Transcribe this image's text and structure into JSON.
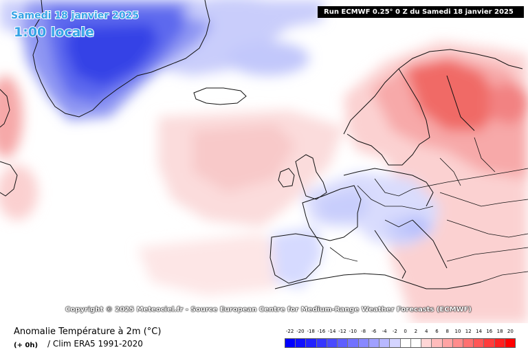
{
  "map": {
    "date_title": "Samedi 18 janvier 2025",
    "time_title": "1:00 locale",
    "run_info": "Run ECMWF 0.25° 0 Z du Samedi 18 janvier 2025",
    "copyright": "Copyright © 2025 Meteociel.fr - Source European Centre for Medium-Range Weather Forecasts (ECMWF)",
    "colors": {
      "ocean_neutral": "#ffffff",
      "greenland_cold": "#1f2fe0",
      "scandinavia_warm": "#f06a66",
      "border_lines": "#000000"
    }
  },
  "footer": {
    "field_title": "Anomalie Température à 2m (°C)",
    "lead_time": "(+ 0h)",
    "clim": "/ Clim ERA5 1991-2020"
  },
  "legend": {
    "labels": [
      "-22",
      "-20",
      "-18",
      "-16",
      "-14",
      "-12",
      "-10",
      "-8",
      "-6",
      "-4",
      "-2",
      "0",
      "2",
      "4",
      "6",
      "8",
      "10",
      "12",
      "14",
      "16",
      "18",
      "20"
    ],
    "colors": [
      "#0000ff",
      "#1010ff",
      "#2222ff",
      "#3636ff",
      "#4a4aff",
      "#5e5eff",
      "#7272ff",
      "#8888ff",
      "#a0a0ff",
      "#b8b8ff",
      "#d4d4ff",
      "#ffffff",
      "#ffffff",
      "#ffd6d6",
      "#ffbcbc",
      "#ffa4a4",
      "#ff8c8c",
      "#ff7070",
      "#ff5656",
      "#ff3c3c",
      "#ff2020",
      "#ff0000"
    ]
  }
}
